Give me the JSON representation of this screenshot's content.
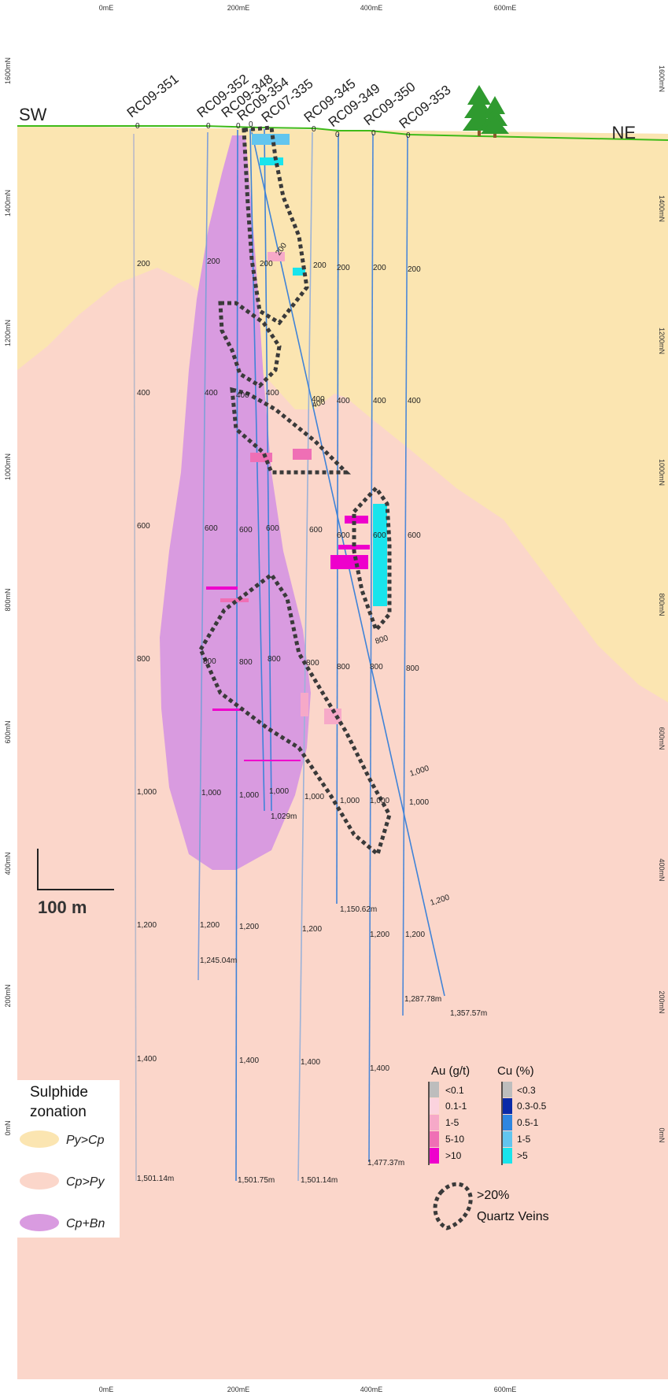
{
  "section": {
    "sw_label": "SW",
    "ne_label": "NE",
    "easting_labels": [
      "0mE",
      "200mE",
      "400mE",
      "600mE"
    ],
    "northing_labels": [
      "1600mN",
      "1400mN",
      "1200mN",
      "1000mN",
      "800mN",
      "600mN",
      "400mN",
      "200mN",
      "0mN"
    ],
    "scale_bar_label": "100 m"
  },
  "colors": {
    "py_gt_cp": "#fbe5b1",
    "cp_gt_py": "#fbd6ca",
    "cp_bn": "#d99be0",
    "topography": "#3fba19",
    "vein_outline": "#3a3a3a",
    "trace": "#3476d8"
  },
  "drill_holes": [
    {
      "id": "RC09-351",
      "depth_labels": [
        "0",
        "200",
        "400",
        "600",
        "800",
        "1,000",
        "1,200",
        "1,400"
      ],
      "end_depth": "1,501.14m"
    },
    {
      "id": "RC09-352",
      "depth_labels": [
        "0",
        "200",
        "400",
        "600",
        "800",
        "1,000",
        "1,200"
      ],
      "end_depth": "1,245.04m"
    },
    {
      "id": "RC09-348",
      "depth_labels": [
        "0",
        "400",
        "600",
        "800",
        "1,000",
        "1,200",
        "1,400"
      ],
      "end_depth": "1,501.75m"
    },
    {
      "id": "RC09-354",
      "depth_labels": [
        "0",
        "200",
        "400",
        "600",
        "800",
        "1,000"
      ],
      "end_depth": "1,029m"
    },
    {
      "id": "RC07-335",
      "depth_labels": [
        "200"
      ],
      "end_depth": ""
    },
    {
      "id": "RC09-345",
      "depth_labels": [
        "0",
        "200",
        "400",
        "600",
        "800",
        "1,000",
        "1,200",
        "1,400"
      ],
      "end_depth": "1,501.14m"
    },
    {
      "id": "RC09-349",
      "depth_labels": [
        "0",
        "200",
        "400",
        "600",
        "800",
        "1,000"
      ],
      "end_depth": "1,150.62m"
    },
    {
      "id": "RC09-350",
      "depth_labels": [
        "0",
        "200",
        "400",
        "600",
        "800",
        "1,000",
        "1,200",
        "1,400"
      ],
      "end_depth": "1,477.37m"
    },
    {
      "id": "RC09-353",
      "depth_labels": [
        "0",
        "200",
        "400",
        "600",
        "800",
        "1,000",
        "1,200"
      ],
      "end_depth": "1,287.78m"
    },
    {
      "id": "RC07-335-deep",
      "depth_labels": [
        "400",
        "800",
        "1,000",
        "1,200"
      ],
      "end_depth": "1,357.57m"
    }
  ],
  "legend": {
    "title_line1": "Sulphide",
    "title_line2": "zonation",
    "items": [
      {
        "label": "Py>Cp",
        "color": "#fbe5b1"
      },
      {
        "label": "Cp>Py",
        "color": "#fbd6ca"
      },
      {
        "label": "Cp+Bn",
        "color": "#d99be0"
      }
    ]
  },
  "grade_key": {
    "au_title": "Au (g/t)",
    "au_items": [
      {
        "label": "<0.1",
        "color": "#bdbdbd"
      },
      {
        "label": "0.1-1",
        "color": "#fbd3de"
      },
      {
        "label": "1-5",
        "color": "#f6a9c8"
      },
      {
        "label": "5-10",
        "color": "#ef6fb5"
      },
      {
        "label": ">10",
        "color": "#ee00cc"
      }
    ],
    "cu_title": "Cu (%)",
    "cu_items": [
      {
        "label": "<0.3",
        "color": "#bdbdbd"
      },
      {
        "label": "0.3-0.5",
        "color": "#0a2aa8"
      },
      {
        "label": "0.5-1",
        "color": "#2f86e0"
      },
      {
        "label": "1-5",
        "color": "#62c5ee"
      },
      {
        "label": ">5",
        "color": "#19e4ec"
      }
    ],
    "vein_label_line1": ">20%",
    "vein_label_line2": "Quartz Veins"
  }
}
